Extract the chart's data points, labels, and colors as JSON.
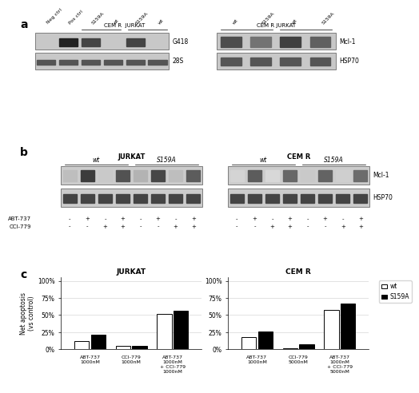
{
  "panel_a_title": "a",
  "panel_b_title": "b",
  "panel_c_title": "c",
  "jurkat_title": "JURKAT",
  "cemr_title": "CEM R",
  "ylabel": "Net apoptosis\n(vs control)",
  "jurkat_categories": [
    "ABT-737\n1000nM",
    "CCI-779\n1000nM",
    "ABT-737\n1000nM\n+ CCI-779\n1000nM"
  ],
  "cemr_categories": [
    "ABT-737\n1000nM",
    "CCI-779\n5000nM",
    "ABT-737\n1000nM\n+ CCI-779\n5000nM"
  ],
  "jurkat_wt": [
    12,
    5,
    52
  ],
  "jurkat_s159a": [
    21,
    5,
    56
  ],
  "cemr_wt": [
    18,
    1,
    57
  ],
  "cemr_s159a": [
    26,
    7,
    67
  ],
  "yticks": [
    0,
    25,
    50,
    75,
    100
  ],
  "yticklabels": [
    "0%",
    "25%",
    "50%",
    "75%",
    "100%"
  ],
  "ylim": [
    0,
    105
  ],
  "bar_width": 0.35,
  "wt_color": "white",
  "s159a_color": "black",
  "wt_edgecolor": "black",
  "s159a_edgecolor": "black",
  "legend_wt": "wt",
  "legend_s159a": "S159A",
  "panel_a_gel_left_label1": "G418",
  "panel_a_gel_left_label2": "28S",
  "panel_a_gel_right_label1": "Mcl-1",
  "panel_a_gel_right_label2": "HSP70",
  "panel_b_gel_label1": "Mcl-1",
  "panel_b_gel_label2": "HSP70",
  "panel_b_jurkat_header": "JURKAT",
  "panel_b_cemr_header": "CEM R",
  "panel_b_row1": "ABT-737",
  "panel_b_row2": "CCI-779",
  "bg_color": "white"
}
